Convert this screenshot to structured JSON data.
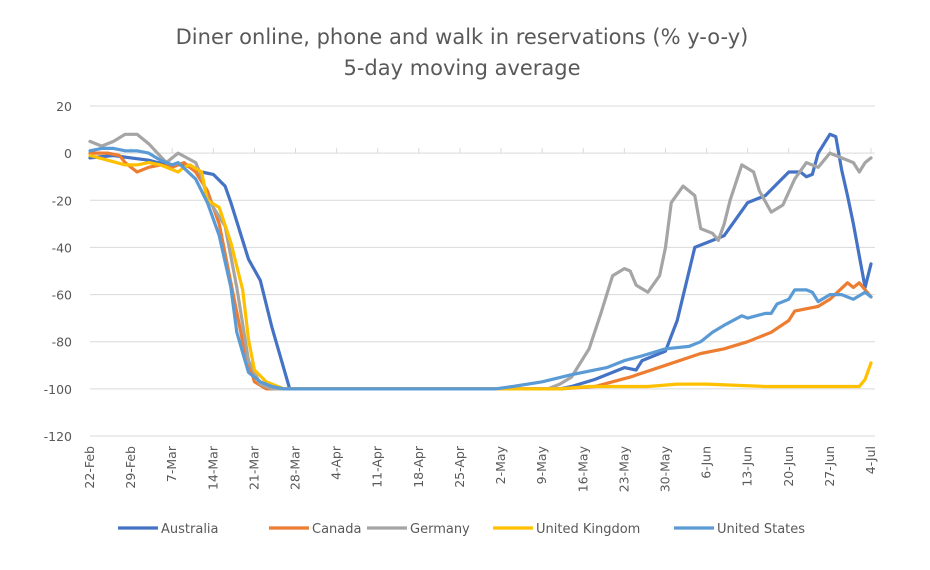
{
  "chart_data": {
    "type": "line",
    "title": "Diner online, phone and walk in reservations (% y-o-y)",
    "subtitle": "5-day moving average",
    "xlabel": "",
    "ylabel": "",
    "ylim": [
      -120,
      20
    ],
    "yticks": [
      20,
      0,
      -20,
      -40,
      -60,
      -80,
      -100,
      -120
    ],
    "xticks": [
      "22-Feb",
      "29-Feb",
      "7-Mar",
      "14-Mar",
      "21-Mar",
      "28-Mar",
      "4-Apr",
      "11-Apr",
      "18-Apr",
      "25-Apr",
      "2-May",
      "9-May",
      "16-May",
      "23-May",
      "30-May",
      "6-Jun",
      "13-Jun",
      "20-Jun",
      "27-Jun",
      "4-Jul"
    ],
    "xlim": [
      "22-Feb",
      "4-Jul"
    ],
    "grid": true,
    "legend_position": "bottom",
    "series": [
      {
        "name": "Australia",
        "color": "#4472C4",
        "points": [
          [
            "22-Feb",
            -2
          ],
          [
            "26-Feb",
            -1
          ],
          [
            "29-Feb",
            -2
          ],
          [
            "3-Mar",
            -3
          ],
          [
            "6-Mar",
            -5
          ],
          [
            "9-Mar",
            -5
          ],
          [
            "12-Mar",
            -8
          ],
          [
            "14-Mar",
            -9
          ],
          [
            "16-Mar",
            -14
          ],
          [
            "17-Mar",
            -21
          ],
          [
            "20-Mar",
            -45
          ],
          [
            "22-Mar",
            -54
          ],
          [
            "24-Mar",
            -74
          ],
          [
            "27-Mar",
            -100
          ],
          [
            "12-May",
            -100
          ],
          [
            "14-May",
            -99
          ],
          [
            "18-May",
            -96
          ],
          [
            "23-May",
            -91
          ],
          [
            "25-May",
            -92
          ],
          [
            "26-May",
            -88
          ],
          [
            "30-May",
            -84
          ],
          [
            "1-Jun",
            -71
          ],
          [
            "4-Jun",
            -40
          ],
          [
            "7-Jun",
            -37
          ],
          [
            "9-Jun",
            -35
          ],
          [
            "13-Jun",
            -21
          ],
          [
            "16-Jun",
            -18
          ],
          [
            "20-Jun",
            -8
          ],
          [
            "22-Jun",
            -8
          ],
          [
            "23-Jun",
            -10
          ],
          [
            "24-Jun",
            -9
          ],
          [
            "25-Jun",
            0
          ],
          [
            "27-Jun",
            8
          ],
          [
            "28-Jun",
            7
          ],
          [
            "29-Jun",
            -7
          ],
          [
            "30-Jun",
            -18
          ],
          [
            "1-Jul",
            -30
          ],
          [
            "3-Jul",
            -57
          ],
          [
            "4-Jul",
            -47
          ]
        ]
      },
      {
        "name": "Canada",
        "color": "#ED7D31",
        "points": [
          [
            "22-Feb",
            0
          ],
          [
            "25-Feb",
            0
          ],
          [
            "27-Feb",
            -1
          ],
          [
            "28-Feb",
            -4
          ],
          [
            "1-Mar",
            -8
          ],
          [
            "3-Mar",
            -6
          ],
          [
            "5-Mar",
            -5
          ],
          [
            "7-Mar",
            -6
          ],
          [
            "9-Mar",
            -4
          ],
          [
            "11-Mar",
            -8
          ],
          [
            "13-Mar",
            -16
          ],
          [
            "15-Mar",
            -30
          ],
          [
            "17-Mar",
            -55
          ],
          [
            "19-Mar",
            -80
          ],
          [
            "21-Mar",
            -97
          ],
          [
            "23-Mar",
            -100
          ],
          [
            "12-May",
            -100
          ],
          [
            "18-May",
            -99
          ],
          [
            "24-May",
            -95
          ],
          [
            "30-May",
            -90
          ],
          [
            "5-Jun",
            -85
          ],
          [
            "9-Jun",
            -83
          ],
          [
            "13-Jun",
            -80
          ],
          [
            "17-Jun",
            -76
          ],
          [
            "20-Jun",
            -71
          ],
          [
            "21-Jun",
            -67
          ],
          [
            "25-Jun",
            -65
          ],
          [
            "27-Jun",
            -62
          ],
          [
            "30-Jun",
            -55
          ],
          [
            "1-Jul",
            -57
          ],
          [
            "2-Jul",
            -55
          ],
          [
            "4-Jul",
            -61
          ]
        ]
      },
      {
        "name": "Germany",
        "color": "#A5A5A5",
        "points": [
          [
            "22-Feb",
            5
          ],
          [
            "24-Feb",
            3
          ],
          [
            "26-Feb",
            5
          ],
          [
            "28-Feb",
            8
          ],
          [
            "1-Mar",
            8
          ],
          [
            "3-Mar",
            4
          ],
          [
            "6-Mar",
            -4
          ],
          [
            "8-Mar",
            0
          ],
          [
            "11-Mar",
            -4
          ],
          [
            "12-Mar",
            -10
          ],
          [
            "13-Mar",
            -19
          ],
          [
            "16-Mar",
            -31
          ],
          [
            "18-Mar",
            -57
          ],
          [
            "20-Mar",
            -88
          ],
          [
            "22-Mar",
            -98
          ],
          [
            "24-Mar",
            -100
          ],
          [
            "10-May",
            -100
          ],
          [
            "12-May",
            -98
          ],
          [
            "14-May",
            -95
          ],
          [
            "17-May",
            -83
          ],
          [
            "19-May",
            -68
          ],
          [
            "21-May",
            -52
          ],
          [
            "23-May",
            -49
          ],
          [
            "24-May",
            -50
          ],
          [
            "25-May",
            -56
          ],
          [
            "27-May",
            -59
          ],
          [
            "29-May",
            -52
          ],
          [
            "30-May",
            -40
          ],
          [
            "31-May",
            -21
          ],
          [
            "2-Jun",
            -14
          ],
          [
            "4-Jun",
            -18
          ],
          [
            "5-Jun",
            -32
          ],
          [
            "7-Jun",
            -34
          ],
          [
            "8-Jun",
            -37
          ],
          [
            "9-Jun",
            -30
          ],
          [
            "10-Jun",
            -20
          ],
          [
            "12-Jun",
            -5
          ],
          [
            "14-Jun",
            -8
          ],
          [
            "15-Jun",
            -16
          ],
          [
            "17-Jun",
            -25
          ],
          [
            "19-Jun",
            -22
          ],
          [
            "21-Jun",
            -11
          ],
          [
            "23-Jun",
            -4
          ],
          [
            "25-Jun",
            -6
          ],
          [
            "27-Jun",
            0
          ],
          [
            "29-Jun",
            -2
          ],
          [
            "1-Jul",
            -4
          ],
          [
            "2-Jul",
            -8
          ],
          [
            "3-Jul",
            -4
          ],
          [
            "4-Jul",
            -2
          ]
        ]
      },
      {
        "name": "United Kingdom",
        "color": "#FFC000",
        "points": [
          [
            "22-Feb",
            -1
          ],
          [
            "25-Feb",
            -3
          ],
          [
            "28-Feb",
            -5
          ],
          [
            "1-Mar",
            -5
          ],
          [
            "3-Mar",
            -4
          ],
          [
            "5-Mar",
            -5
          ],
          [
            "7-Mar",
            -7
          ],
          [
            "8-Mar",
            -8
          ],
          [
            "9-Mar",
            -6
          ],
          [
            "10-Mar",
            -5
          ],
          [
            "12-Mar",
            -8
          ],
          [
            "13-Mar",
            -20
          ],
          [
            "15-Mar",
            -23
          ],
          [
            "17-Mar",
            -38
          ],
          [
            "19-Mar",
            -58
          ],
          [
            "20-Mar",
            -79
          ],
          [
            "21-Mar",
            -92
          ],
          [
            "23-Mar",
            -97
          ],
          [
            "25-Mar",
            -99
          ],
          [
            "26-Mar",
            -100
          ],
          [
            "12-May",
            -100
          ],
          [
            "17-May",
            -99
          ],
          [
            "27-May",
            -99
          ],
          [
            "1-Jun",
            -98
          ],
          [
            "6-Jun",
            -98
          ],
          [
            "16-Jun",
            -99
          ],
          [
            "26-Jun",
            -99
          ],
          [
            "2-Jul",
            -99
          ],
          [
            "3-Jul",
            -96
          ],
          [
            "4-Jul",
            -89
          ]
        ]
      },
      {
        "name": "United States",
        "color": "#5B9BD5",
        "points": [
          [
            "22-Feb",
            1
          ],
          [
            "24-Feb",
            2
          ],
          [
            "26-Feb",
            2
          ],
          [
            "28-Feb",
            1
          ],
          [
            "1-Mar",
            1
          ],
          [
            "3-Mar",
            0
          ],
          [
            "5-Mar",
            -3
          ],
          [
            "7-Mar",
            -5
          ],
          [
            "8-Mar",
            -4
          ],
          [
            "11-Mar",
            -11
          ],
          [
            "13-Mar",
            -21
          ],
          [
            "15-Mar",
            -35
          ],
          [
            "17-Mar",
            -57
          ],
          [
            "18-Mar",
            -76
          ],
          [
            "20-Mar",
            -93
          ],
          [
            "22-Mar",
            -97
          ],
          [
            "24-Mar",
            -99
          ],
          [
            "26-Mar",
            -100
          ],
          [
            "1-May",
            -100
          ],
          [
            "4-May",
            -99
          ],
          [
            "9-May",
            -97
          ],
          [
            "14-May",
            -94
          ],
          [
            "20-May",
            -91
          ],
          [
            "23-May",
            -88
          ],
          [
            "26-May",
            -86
          ],
          [
            "30-May",
            -83
          ],
          [
            "3-Jun",
            -82
          ],
          [
            "5-Jun",
            -80
          ],
          [
            "7-Jun",
            -76
          ],
          [
            "9-Jun",
            -73
          ],
          [
            "12-Jun",
            -69
          ],
          [
            "13-Jun",
            -70
          ],
          [
            "16-Jun",
            -68
          ],
          [
            "17-Jun",
            -68
          ],
          [
            "18-Jun",
            -64
          ],
          [
            "20-Jun",
            -62
          ],
          [
            "21-Jun",
            -58
          ],
          [
            "23-Jun",
            -58
          ],
          [
            "24-Jun",
            -59
          ],
          [
            "25-Jun",
            -63
          ],
          [
            "27-Jun",
            -60
          ],
          [
            "29-Jun",
            -60
          ],
          [
            "1-Jul",
            -62
          ],
          [
            "3-Jul",
            -59
          ],
          [
            "4-Jul",
            -61
          ]
        ]
      }
    ]
  }
}
